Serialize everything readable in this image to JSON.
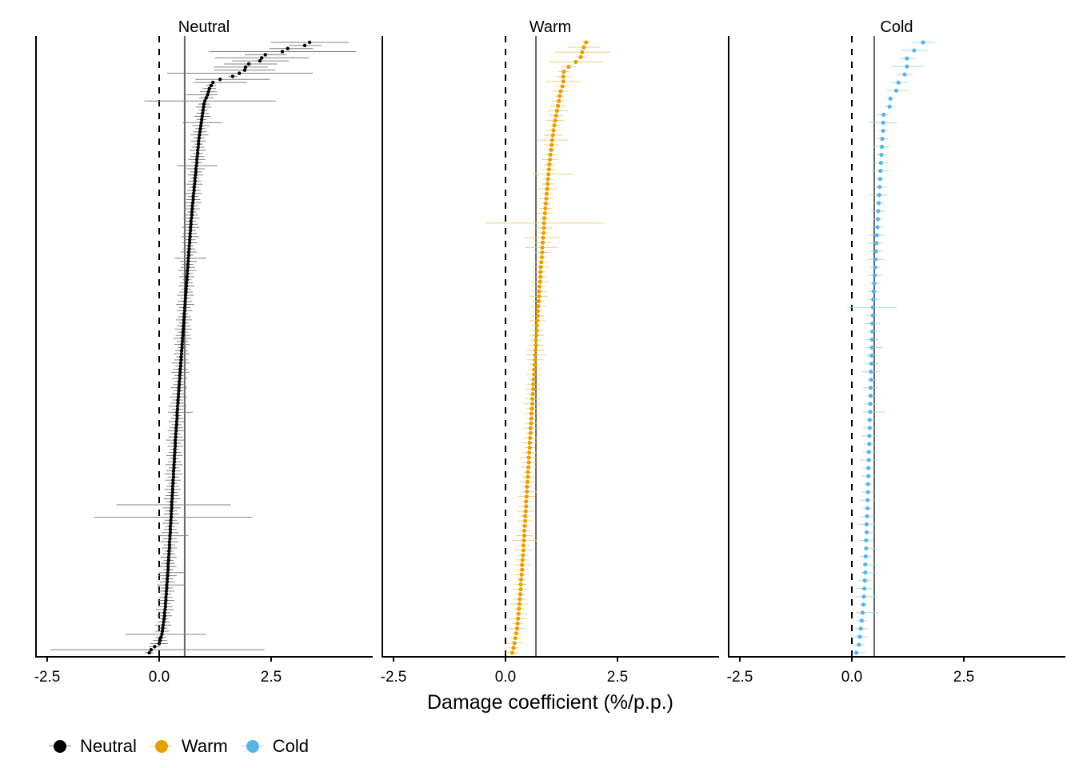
{
  "chart_data": {
    "type": "scatter",
    "subtype": "forest-plot-faceted",
    "xlabel": "Damage coefficient (%/p.p.)",
    "xlim": [
      -2.75,
      4.75
    ],
    "xticks": [
      -2.5,
      0.0,
      2.5
    ],
    "xtick_labels": [
      "-2.5",
      "0.0",
      "2.5"
    ],
    "reference_line_dashed": 0.0,
    "grid": false,
    "legend_position": "bottom-left",
    "panels": [
      {
        "name": "Neutral",
        "color": "#000000",
        "bar_color": "#808080",
        "mean_line": 0.57,
        "estimates": [
          3.36,
          3.25,
          2.87,
          2.75,
          2.37,
          2.29,
          2.25,
          2.0,
          1.93,
          1.91,
          1.79,
          1.64,
          1.36,
          1.2,
          1.16,
          1.12,
          1.1,
          1.08,
          1.05,
          1.02,
          1.0,
          0.99,
          0.98,
          0.97,
          0.96,
          0.95,
          0.94,
          0.93,
          0.92,
          0.91,
          0.9,
          0.89,
          0.88,
          0.88,
          0.87,
          0.86,
          0.86,
          0.85,
          0.84,
          0.84,
          0.83,
          0.82,
          0.82,
          0.81,
          0.8,
          0.8,
          0.79,
          0.78,
          0.78,
          0.77,
          0.76,
          0.76,
          0.75,
          0.74,
          0.74,
          0.73,
          0.73,
          0.72,
          0.71,
          0.71,
          0.7,
          0.7,
          0.69,
          0.69,
          0.68,
          0.68,
          0.67,
          0.67,
          0.66,
          0.66,
          0.65,
          0.65,
          0.64,
          0.64,
          0.63,
          0.63,
          0.62,
          0.62,
          0.61,
          0.61,
          0.6,
          0.6,
          0.59,
          0.59,
          0.58,
          0.58,
          0.57,
          0.57,
          0.56,
          0.56,
          0.55,
          0.55,
          0.54,
          0.54,
          0.53,
          0.53,
          0.52,
          0.52,
          0.51,
          0.51,
          0.5,
          0.5,
          0.49,
          0.49,
          0.48,
          0.48,
          0.47,
          0.47,
          0.46,
          0.46,
          0.45,
          0.45,
          0.44,
          0.44,
          0.43,
          0.43,
          0.42,
          0.42,
          0.41,
          0.41,
          0.4,
          0.4,
          0.4,
          0.39,
          0.39,
          0.38,
          0.38,
          0.37,
          0.37,
          0.36,
          0.36,
          0.36,
          0.35,
          0.35,
          0.34,
          0.34,
          0.34,
          0.33,
          0.33,
          0.32,
          0.32,
          0.32,
          0.31,
          0.31,
          0.3,
          0.3,
          0.3,
          0.29,
          0.29,
          0.28,
          0.28,
          0.28,
          0.27,
          0.27,
          0.27,
          0.26,
          0.26,
          0.25,
          0.25,
          0.25,
          0.24,
          0.24,
          0.23,
          0.23,
          0.23,
          0.22,
          0.22,
          0.21,
          0.21,
          0.2,
          0.2,
          0.2,
          0.19,
          0.19,
          0.18,
          0.18,
          0.17,
          0.17,
          0.16,
          0.16,
          0.15,
          0.15,
          0.14,
          0.14,
          0.13,
          0.12,
          0.12,
          0.11,
          0.1,
          0.09,
          0.08,
          0.07,
          0.06,
          0.04,
          0.02,
          0.0,
          -0.1,
          -0.18,
          -0.22
        ],
        "wide_bars": [
          [
            0,
            2.5,
            4.23
          ],
          [
            1,
            2.9,
            3.63
          ],
          [
            2,
            2.46,
            3.43
          ],
          [
            3,
            1.11,
            4.4
          ],
          [
            4,
            1.91,
            2.85
          ],
          [
            5,
            1.25,
            3.34
          ],
          [
            6,
            1.63,
            2.89
          ],
          [
            7,
            1.45,
            2.64
          ],
          [
            8,
            1.22,
            2.43
          ],
          [
            9,
            1.23,
            2.6
          ],
          [
            10,
            0.18,
            3.43
          ],
          [
            12,
            0.81,
            2.47
          ],
          [
            13,
            0.78,
            1.96
          ],
          [
            17,
            0.6,
            1.3
          ],
          [
            19,
            -0.33,
            2.6
          ],
          [
            26,
            0.52,
            1.4
          ],
          [
            40,
            0.4,
            1.3
          ],
          [
            70,
            0.35,
            1.05
          ],
          [
            120,
            0.2,
            0.75
          ],
          [
            150,
            -0.95,
            1.6
          ],
          [
            154,
            -1.45,
            2.07
          ],
          [
            160,
            0.0,
            0.65
          ],
          [
            172,
            0.0,
            0.6
          ],
          [
            176,
            -0.05,
            0.58
          ],
          [
            192,
            -0.75,
            1.05
          ],
          [
            197,
            -2.43,
            2.35
          ]
        ]
      },
      {
        "name": "Warm",
        "color": "#E69F00",
        "bar_color": "#F2CD7A",
        "mean_line": 0.68,
        "estimates": [
          1.8,
          1.75,
          1.71,
          1.68,
          1.57,
          1.41,
          1.3,
          1.29,
          1.29,
          1.27,
          1.23,
          1.21,
          1.19,
          1.17,
          1.15,
          1.13,
          1.11,
          1.09,
          1.07,
          1.06,
          1.04,
          1.03,
          1.02,
          1.0,
          0.99,
          0.98,
          0.97,
          0.96,
          0.95,
          0.94,
          0.93,
          0.92,
          0.91,
          0.9,
          0.89,
          0.88,
          0.87,
          0.86,
          0.86,
          0.85,
          0.84,
          0.83,
          0.82,
          0.82,
          0.81,
          0.8,
          0.79,
          0.78,
          0.78,
          0.77,
          0.76,
          0.75,
          0.75,
          0.74,
          0.73,
          0.72,
          0.72,
          0.71,
          0.7,
          0.7,
          0.69,
          0.68,
          0.68,
          0.67,
          0.66,
          0.66,
          0.65,
          0.64,
          0.64,
          0.63,
          0.62,
          0.62,
          0.61,
          0.6,
          0.6,
          0.59,
          0.58,
          0.58,
          0.57,
          0.56,
          0.56,
          0.55,
          0.54,
          0.54,
          0.53,
          0.52,
          0.52,
          0.51,
          0.5,
          0.5,
          0.49,
          0.48,
          0.48,
          0.47,
          0.46,
          0.46,
          0.45,
          0.44,
          0.44,
          0.43,
          0.42,
          0.42,
          0.41,
          0.4,
          0.4,
          0.39,
          0.38,
          0.37,
          0.37,
          0.36,
          0.35,
          0.34,
          0.34,
          0.33,
          0.32,
          0.31,
          0.3,
          0.29,
          0.28,
          0.27,
          0.26,
          0.24,
          0.22,
          0.2,
          0.18,
          0.15
        ],
        "wide_bars": [
          [
            1,
            1.4,
            2.1
          ],
          [
            2,
            1.1,
            2.34
          ],
          [
            3,
            1.56,
            1.82
          ],
          [
            4,
            0.98,
            2.17
          ],
          [
            5,
            1.25,
            1.57
          ],
          [
            8,
            0.9,
            1.67
          ],
          [
            10,
            1.05,
            1.43
          ],
          [
            14,
            0.95,
            1.4
          ],
          [
            20,
            0.7,
            1.4
          ],
          [
            27,
            0.6,
            1.5
          ],
          [
            37,
            -0.45,
            2.2
          ],
          [
            40,
            0.42,
            1.2
          ],
          [
            42,
            0.45,
            1.15
          ],
          [
            60,
            0.55,
            0.85
          ],
          [
            64,
            0.45,
            0.9
          ],
          [
            86,
            0.35,
            0.75
          ],
          [
            92,
            0.35,
            0.7
          ],
          [
            102,
            0.15,
            0.7
          ],
          [
            117,
            0.2,
            0.5
          ]
        ]
      },
      {
        "name": "Cold",
        "color": "#56B4E9",
        "bar_color": "#A8D8F3",
        "mean_line": 0.5,
        "estimates": [
          1.59,
          1.39,
          1.23,
          1.23,
          1.18,
          1.04,
          0.99,
          0.86,
          0.84,
          0.71,
          0.7,
          0.7,
          0.68,
          0.67,
          0.66,
          0.65,
          0.64,
          0.63,
          0.62,
          0.61,
          0.6,
          0.59,
          0.58,
          0.57,
          0.56,
          0.55,
          0.54,
          0.53,
          0.52,
          0.51,
          0.5,
          0.49,
          0.48,
          0.47,
          0.47,
          0.46,
          0.46,
          0.45,
          0.45,
          0.44,
          0.44,
          0.43,
          0.43,
          0.42,
          0.42,
          0.41,
          0.41,
          0.4,
          0.4,
          0.39,
          0.39,
          0.38,
          0.38,
          0.37,
          0.37,
          0.36,
          0.36,
          0.35,
          0.35,
          0.34,
          0.33,
          0.33,
          0.32,
          0.32,
          0.31,
          0.3,
          0.3,
          0.29,
          0.28,
          0.27,
          0.26,
          0.24,
          0.22,
          0.2,
          0.18,
          0.16,
          0.1
        ],
        "wide_bars": [
          [
            0,
            1.36,
            1.85
          ],
          [
            1,
            1.11,
            1.7
          ],
          [
            2,
            1.06,
            1.43
          ],
          [
            3,
            0.87,
            1.61
          ],
          [
            4,
            1.0,
            1.36
          ],
          [
            6,
            0.77,
            1.24
          ],
          [
            7,
            0.78,
            0.95
          ],
          [
            8,
            0.72,
            0.93
          ],
          [
            10,
            0.39,
            1.02
          ],
          [
            25,
            0.35,
            0.7
          ],
          [
            30,
            0.4,
            0.62
          ],
          [
            32,
            0.35,
            0.63
          ],
          [
            33,
            -0.1,
            1.0
          ],
          [
            34,
            0.3,
            0.55
          ],
          [
            38,
            0.3,
            0.7
          ],
          [
            42,
            0.35,
            0.55
          ],
          [
            46,
            0.25,
            0.75
          ],
          [
            51,
            0.25,
            0.55
          ],
          [
            61,
            0.35,
            0.5
          ],
          [
            63,
            0.28,
            0.55
          ],
          [
            65,
            0.25,
            0.55
          ],
          [
            66,
            0.2,
            0.55
          ],
          [
            69,
            0.05,
            0.55
          ],
          [
            70,
            0.18,
            0.35
          ],
          [
            71,
            0.1,
            0.6
          ],
          [
            74,
            0.05,
            0.35
          ],
          [
            76,
            0.02,
            0.3
          ]
        ]
      }
    ]
  },
  "legend": {
    "items": [
      {
        "label": "Neutral",
        "color": "#000000",
        "line": "#808080"
      },
      {
        "label": "Warm",
        "color": "#E69F00",
        "line": "#F2CD7A"
      },
      {
        "label": "Cold",
        "color": "#56B4E9",
        "line": "#A8D8F3"
      }
    ]
  }
}
